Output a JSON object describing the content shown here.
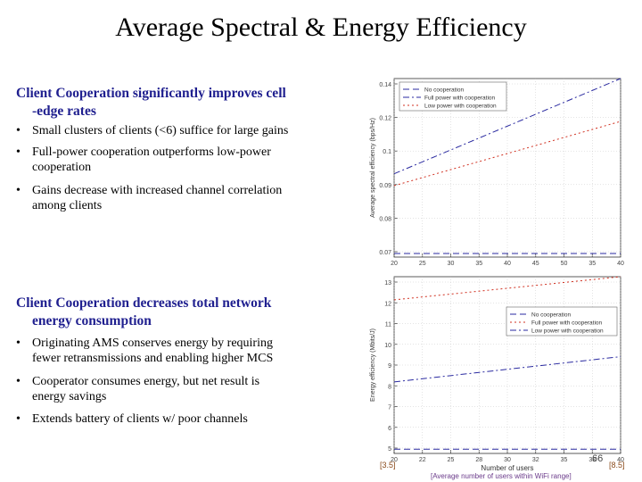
{
  "title": "Average Spectral & Energy Efficiency",
  "section1": {
    "heading_line1": "Client Cooperation significantly improves cell",
    "heading_line2": "-edge rates",
    "bullets": [
      {
        "line1": "Small clusters of clients (<6) suffice for large gains",
        "line2": ""
      },
      {
        "line1": "Full-power cooperation outperforms low-power",
        "line2": "cooperation"
      },
      {
        "line1": "Gains decrease with increased channel correlation",
        "line2": "among clients"
      }
    ]
  },
  "section2": {
    "heading_line1": "Client Cooperation decreases total network",
    "heading_line2": "energy consumption",
    "bullets": [
      {
        "line1": "Originating AMS conserves energy by requiring",
        "line2": "fewer retransmissions and enabling higher MCS"
      },
      {
        "line1": "Cooperator consumes energy, but net result is",
        "line2": "energy savings"
      },
      {
        "line1": "Extends battery of clients w/ poor channels",
        "line2": ""
      }
    ]
  },
  "footer": {
    "slide_number": "66",
    "ref_left": "[3.5]",
    "ref_right": "[8.5]",
    "xlabel": "Number of users",
    "caption": "[Average number of users within WiFi range]"
  },
  "chart_data": [
    {
      "type": "line",
      "title": "",
      "ylabel": "Average spectral efficiency (bps/Hz)",
      "xlabel": "",
      "x_ticks": [
        "20",
        "25",
        "30",
        "35",
        "40",
        "45",
        "50",
        "35",
        "40"
      ],
      "y_ticks": [
        "0.14",
        "0.12",
        "0.1",
        "0.09",
        "0.08",
        "0.07"
      ],
      "ylim": [
        0.065,
        0.14
      ],
      "legend_position": "top-left",
      "series": [
        {
          "name": "No cooperation",
          "color": "#2a2aa0",
          "dash": "dashed",
          "x": [
            20,
            40
          ],
          "y": [
            0.0665,
            0.0665
          ]
        },
        {
          "name": "Full power with cooperation",
          "color": "#2a2aa0",
          "dash": "dashdot",
          "x": [
            20,
            40
          ],
          "y": [
            0.1,
            0.14
          ]
        },
        {
          "name": "Low power with cooperation",
          "color": "#d03020",
          "dash": "dotted",
          "x": [
            20,
            40
          ],
          "y": [
            0.095,
            0.122
          ]
        }
      ]
    },
    {
      "type": "line",
      "title": "",
      "ylabel": "Energy efficiency (Mbits/J)",
      "xlabel": "Number of users",
      "x_ticks": [
        "20",
        "22",
        "25",
        "28",
        "30",
        "32",
        "35",
        "38",
        "40"
      ],
      "y_ticks": [
        "13",
        "12",
        "11",
        "10",
        "9",
        "8",
        "7",
        "6",
        "5"
      ],
      "ylim": [
        4.6,
        13
      ],
      "legend_position": "top-right",
      "series": [
        {
          "name": "No cooperation",
          "color": "#2a2aa0",
          "dash": "dashed",
          "x": [
            20,
            40
          ],
          "y": [
            4.8,
            4.8
          ]
        },
        {
          "name": "Full power with cooperation",
          "color": "#d03020",
          "dash": "dotted",
          "x": [
            20,
            40
          ],
          "y": [
            11.9,
            13
          ]
        },
        {
          "name": "Low power with cooperation",
          "color": "#2a2aa0",
          "dash": "dashdot",
          "x": [
            20,
            40
          ],
          "y": [
            8.0,
            9.2
          ]
        }
      ]
    }
  ]
}
